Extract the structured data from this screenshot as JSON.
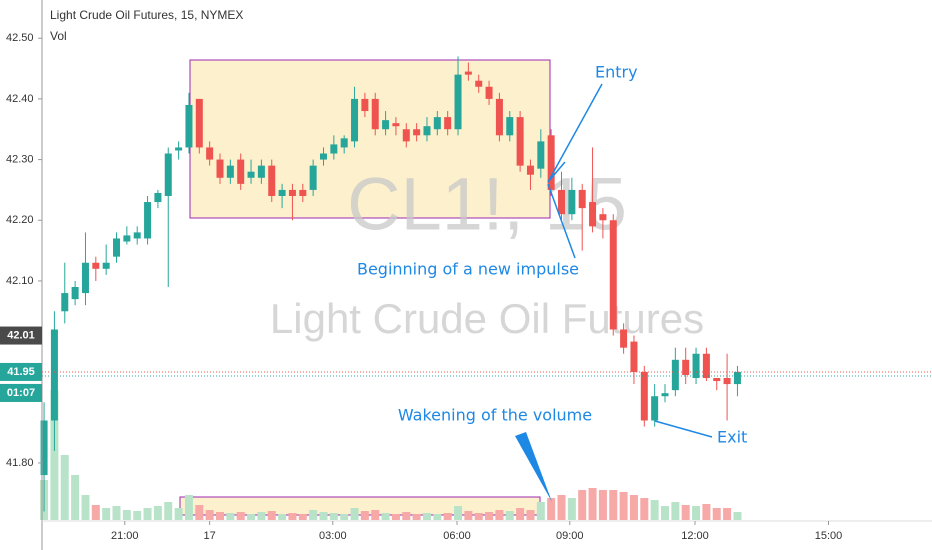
{
  "header": {
    "title": "Light Crude Oil Futures, 15, NYMEX",
    "volume_label": "Vol"
  },
  "watermark": {
    "symbol": "CL1!, 15",
    "name": "Light Crude Oil Futures"
  },
  "chart_data": {
    "type": "candlestick",
    "open": [
      41.78,
      41.87,
      42.05,
      42.07,
      42.08,
      42.13,
      42.12,
      42.14,
      42.165,
      42.17,
      42.17,
      42.23,
      42.24,
      42.315,
      42.32,
      42.4,
      42.32,
      42.3,
      42.27,
      42.3,
      42.27,
      42.27,
      42.29,
      42.24,
      42.25,
      42.25,
      42.25,
      42.3,
      42.31,
      42.32,
      42.33,
      42.4,
      42.4,
      42.35,
      42.36,
      42.35,
      42.35,
      42.34,
      42.35,
      42.37,
      42.35,
      42.445,
      42.43,
      42.42,
      42.4,
      42.34,
      42.37,
      42.29,
      42.285,
      42.34,
      42.25,
      42.21,
      42.25,
      42.23,
      42.21,
      42.2,
      42.02,
      42.0,
      41.95,
      41.87,
      41.91,
      41.92,
      41.97,
      41.94,
      41.98,
      41.94,
      41.94,
      41.93
    ],
    "high": [
      41.9,
      42.05,
      42.13,
      42.1,
      42.18,
      42.14,
      42.16,
      42.18,
      42.19,
      42.19,
      42.24,
      42.25,
      42.32,
      42.33,
      42.41,
      42.4,
      42.33,
      42.31,
      42.3,
      42.31,
      42.3,
      42.3,
      42.3,
      42.26,
      42.26,
      42.26,
      42.3,
      42.32,
      42.34,
      42.34,
      42.42,
      42.41,
      42.41,
      42.38,
      42.37,
      42.36,
      42.36,
      42.37,
      42.38,
      42.38,
      42.47,
      42.46,
      42.44,
      42.43,
      42.41,
      42.38,
      42.38,
      42.3,
      42.35,
      42.35,
      42.28,
      42.27,
      42.26,
      42.32,
      42.22,
      42.21,
      42.03,
      42.01,
      41.96,
      41.93,
      41.93,
      41.99,
      41.99,
      41.99,
      41.99,
      41.94,
      41.98,
      41.96
    ],
    "low": [
      41.72,
      41.82,
      42.03,
      42.06,
      42.06,
      42.1,
      42.11,
      42.13,
      42.16,
      42.16,
      42.16,
      42.22,
      42.09,
      42.3,
      42.31,
      42.31,
      42.29,
      42.26,
      42.26,
      42.25,
      42.26,
      42.26,
      42.23,
      42.22,
      42.2,
      42.23,
      42.24,
      42.29,
      42.3,
      42.31,
      42.32,
      42.37,
      42.34,
      42.34,
      42.34,
      42.32,
      42.33,
      42.33,
      42.34,
      42.34,
      42.34,
      42.43,
      42.41,
      42.39,
      42.33,
      42.33,
      42.28,
      42.25,
      42.27,
      42.24,
      42.2,
      42.2,
      42.15,
      42.18,
      42.17,
      42.01,
      41.98,
      41.93,
      41.86,
      41.86,
      41.9,
      41.91,
      41.93,
      41.93,
      41.935,
      41.92,
      41.87,
      41.91
    ],
    "close": [
      41.87,
      42.02,
      42.08,
      42.09,
      42.13,
      42.12,
      42.13,
      42.17,
      42.175,
      42.18,
      42.23,
      42.245,
      42.31,
      42.32,
      42.39,
      42.32,
      42.3,
      42.27,
      42.29,
      42.26,
      42.28,
      42.29,
      42.24,
      42.25,
      42.24,
      42.24,
      42.29,
      42.31,
      42.325,
      42.335,
      42.4,
      42.38,
      42.35,
      42.365,
      42.355,
      42.33,
      42.34,
      42.355,
      42.37,
      42.35,
      42.44,
      42.44,
      42.42,
      42.4,
      42.34,
      42.37,
      42.29,
      42.275,
      42.33,
      42.25,
      42.21,
      42.25,
      42.22,
      42.19,
      42.2,
      42.02,
      41.99,
      41.95,
      41.87,
      41.91,
      41.915,
      41.97,
      41.945,
      41.98,
      41.94,
      41.935,
      41.93,
      41.95
    ],
    "volume": [
      40,
      130,
      65,
      45,
      25,
      15,
      12,
      14,
      10,
      9,
      12,
      14,
      18,
      12,
      25,
      15,
      10,
      8,
      7,
      8,
      6,
      8,
      9,
      6,
      7,
      6,
      10,
      8,
      7,
      6,
      12,
      9,
      10,
      7,
      6,
      8,
      6,
      7,
      6,
      7,
      14,
      9,
      7,
      8,
      10,
      9,
      12,
      10,
      18,
      22,
      25,
      22,
      30,
      32,
      30,
      30,
      28,
      25,
      22,
      20,
      14,
      18,
      15,
      14,
      16,
      12,
      12,
      8
    ],
    "up_color": "#26a69a",
    "down_color": "#ef5350",
    "volume_up_color": "#b9e3c9",
    "volume_down_color": "#f6a9a7",
    "ylim": [
      41.706,
      42.563
    ],
    "yticks": [
      {
        "value": 42.5,
        "label": "42.50"
      },
      {
        "value": 42.4,
        "label": "42.40"
      },
      {
        "value": 42.3,
        "label": "42.30"
      },
      {
        "value": 42.2,
        "label": "42.20"
      },
      {
        "value": 42.1,
        "label": "42.10"
      },
      {
        "value": 41.8,
        "label": "41.80"
      }
    ],
    "xlim": [
      -0.2,
      85.8
    ],
    "xticks": [
      {
        "value": 7.8,
        "label": "21:00"
      },
      {
        "value": 16.0,
        "label": "17"
      },
      {
        "value": 27.9,
        "label": "03:00"
      },
      {
        "value": 39.9,
        "label": "06:00"
      },
      {
        "value": 50.8,
        "label": "09:00"
      },
      {
        "value": 62.9,
        "label": "12:00"
      },
      {
        "value": 75.8,
        "label": "15:00"
      }
    ],
    "volume_lim": [
      0,
      140
    ],
    "markers": [
      {
        "value": 42.01,
        "label": "42.01",
        "color": "#4a4a4a"
      },
      {
        "value": 41.95,
        "label": "41.95",
        "color": "#26a69a"
      }
    ],
    "countdown": "01:07",
    "annotations": [
      "Entry",
      "Beginning of a new impulse",
      "Wakening of the volume",
      "Exit"
    ]
  }
}
